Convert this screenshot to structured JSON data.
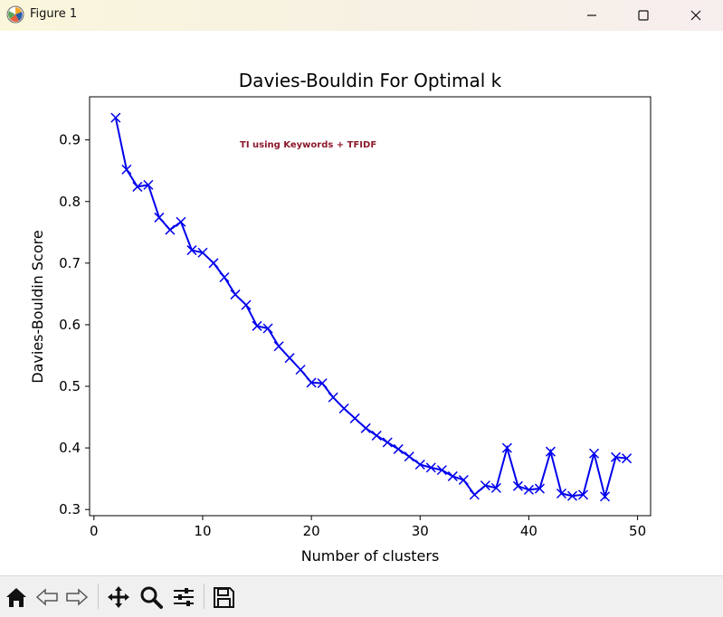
{
  "window": {
    "title": "Figure 1",
    "minimize_icon": "minimize-icon",
    "maximize_icon": "maximize-icon",
    "close_icon": "close-icon"
  },
  "toolbar": {
    "items": [
      "home-icon",
      "back-icon",
      "forward-icon",
      "pan-icon",
      "zoom-icon",
      "configure-subplots-icon",
      "save-icon"
    ]
  },
  "chart_data": {
    "type": "line",
    "title": "Davies-Bouldin For Optimal k",
    "xlabel": "Number of clusters",
    "ylabel": "Davies-Bouldin Score",
    "annotation": "TI using Keywords + TFIDF",
    "xlim": [
      -0.4,
      51.2
    ],
    "ylim": [
      0.29,
      0.97
    ],
    "xticks": [
      "0",
      "10",
      "20",
      "30",
      "40",
      "50"
    ],
    "yticks": [
      "0.3",
      "0.4",
      "0.5",
      "0.6",
      "0.7",
      "0.8",
      "0.9"
    ],
    "grid": false,
    "color": "#0000ee",
    "marker": "x",
    "series": [
      {
        "x": [
          2,
          3,
          4,
          5,
          6,
          7,
          8,
          9,
          10,
          11,
          12,
          13,
          14,
          15,
          16,
          17,
          18,
          19,
          20,
          21,
          22,
          23,
          24,
          25,
          26,
          27,
          28,
          29,
          30,
          31,
          32,
          33,
          34,
          35,
          36,
          37,
          38,
          39,
          40,
          41,
          42,
          43,
          44,
          45,
          46,
          47,
          48,
          49
        ],
        "values": [
          0.936,
          0.852,
          0.824,
          0.827,
          0.774,
          0.754,
          0.767,
          0.721,
          0.717,
          0.7,
          0.677,
          0.649,
          0.632,
          0.598,
          0.594,
          0.565,
          0.546,
          0.527,
          0.506,
          0.505,
          0.482,
          0.464,
          0.448,
          0.432,
          0.42,
          0.409,
          0.398,
          0.386,
          0.373,
          0.368,
          0.364,
          0.354,
          0.348,
          0.324,
          0.339,
          0.335,
          0.4,
          0.338,
          0.332,
          0.334,
          0.394,
          0.326,
          0.322,
          0.324,
          0.391,
          0.321,
          0.385,
          0.383
        ]
      }
    ]
  }
}
